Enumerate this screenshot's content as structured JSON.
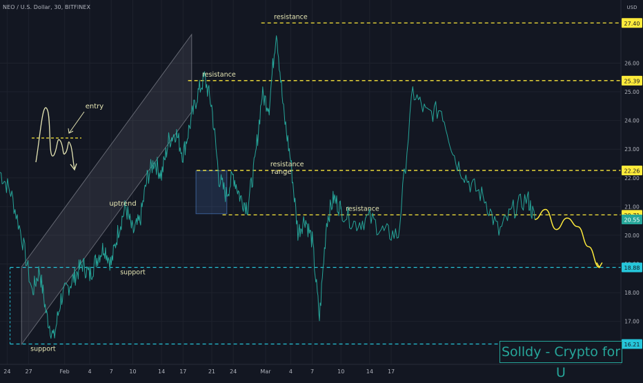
{
  "header": {
    "title": "NEO / U.S. Dollar, 30, BITFINEX"
  },
  "watermark": "Solldy - Crypto for U",
  "colors": {
    "background": "#131722",
    "price_line": "#26a69a",
    "resistance": "#ffeb3b",
    "support": "#26c6da",
    "axis_text": "#b2b5be",
    "annotation": "#e6e6b4",
    "channel_fill": "#9598a1"
  },
  "chart_data": {
    "type": "line",
    "title": "NEO / U.S. Dollar, 30, BITFINEX",
    "ylabel": "USD",
    "ylim": [
      15.5,
      28.2
    ],
    "x_ticks": [
      "24",
      "27",
      "Feb",
      "4",
      "7",
      "10",
      "14",
      "17",
      "21",
      "24",
      "Mar",
      "4",
      "7",
      "10",
      "14",
      "17"
    ],
    "y_ticks": [
      "17.00",
      "18.00",
      "19.00",
      "20.00",
      "21.00",
      "22.00",
      "23.00",
      "24.00",
      "25.00",
      "26.00"
    ],
    "price_tags": [
      {
        "label": "27.40",
        "value": 27.4,
        "kind": "resistance"
      },
      {
        "label": "25.39",
        "value": 25.39,
        "kind": "resistance"
      },
      {
        "label": "22.26",
        "value": 22.26,
        "kind": "resistance"
      },
      {
        "label": "20.71",
        "value": 20.71,
        "kind": "resistance"
      },
      {
        "label": "20.55",
        "value": 20.55,
        "kind": "current"
      },
      {
        "label": "18.88",
        "value": 18.88,
        "kind": "support"
      },
      {
        "label": "16.21",
        "value": 16.21,
        "kind": "support"
      }
    ],
    "levels": [
      {
        "label": "resistance",
        "value": 27.4,
        "kind": "resistance"
      },
      {
        "label": "resistance",
        "value": 25.39,
        "kind": "resistance"
      },
      {
        "label": "resistance",
        "value": 22.26,
        "kind": "resistance"
      },
      {
        "label": "resistance",
        "value": 20.71,
        "kind": "resistance"
      },
      {
        "label": "support",
        "value": 18.88,
        "kind": "support"
      },
      {
        "label": "support",
        "value": 16.21,
        "kind": "support"
      }
    ],
    "annotations": [
      "entry",
      "uptrend",
      "range"
    ],
    "series": [
      {
        "name": "NEO/USD",
        "x": [
          0,
          1.5,
          3,
          4.5,
          5.5,
          6.5,
          7.5,
          8.5,
          9.5,
          10.5,
          11.5,
          12.5,
          13.5,
          14.5,
          15.5,
          16.5,
          17.5,
          18.5,
          19.5,
          20.5,
          21.5,
          22.5,
          23.5,
          24.5,
          25.5,
          26.5,
          27.5,
          28.5,
          29.5,
          30.5,
          31.5,
          32.5,
          33.5,
          34.5,
          35.5,
          36.5,
          37.5,
          38.5,
          39.5,
          40.5,
          41.5,
          42.5,
          43.5,
          44.5,
          45.5,
          46.5,
          47.5
        ],
        "y": [
          22.2,
          21.5,
          20.0,
          18.0,
          18.8,
          17.2,
          16.4,
          17.8,
          18.2,
          18.6,
          19.0,
          18.6,
          19.2,
          19.6,
          19.0,
          20.2,
          21.0,
          20.1,
          20.5,
          22.0,
          22.6,
          22.1,
          23.3,
          23.6,
          22.8,
          23.9,
          24.9,
          25.5,
          24.5,
          22.0,
          21.4,
          22.1,
          21.3,
          21.0,
          22.5,
          24.9,
          24.5,
          27.2,
          24.3,
          22.6,
          20.1,
          20.6,
          19.8,
          17.1,
          20.5,
          21.3,
          20.9
        ]
      },
      {
        "name": "",
        "x": [
          47.5,
          49.5,
          51.5,
          53.5,
          55.5,
          57.5,
          59.5,
          61.5,
          63.5,
          65.5,
          67.5,
          69.5,
          71.5,
          73.5,
          74.5
        ],
        "y": [
          20.9,
          20.4,
          20.6,
          20.1,
          20.0,
          25.0,
          24.2,
          24.4,
          22.6,
          21.8,
          21.3,
          20.1,
          20.9,
          21.3,
          20.55
        ]
      }
    ],
    "projection": {
      "x": [
        74.5,
        76,
        77.5,
        79,
        80.5,
        82,
        83.5
      ],
      "y": [
        20.55,
        20.9,
        20.2,
        20.6,
        20.3,
        19.6,
        18.88
      ]
    },
    "x_range": [
      0,
      86.5
    ]
  }
}
